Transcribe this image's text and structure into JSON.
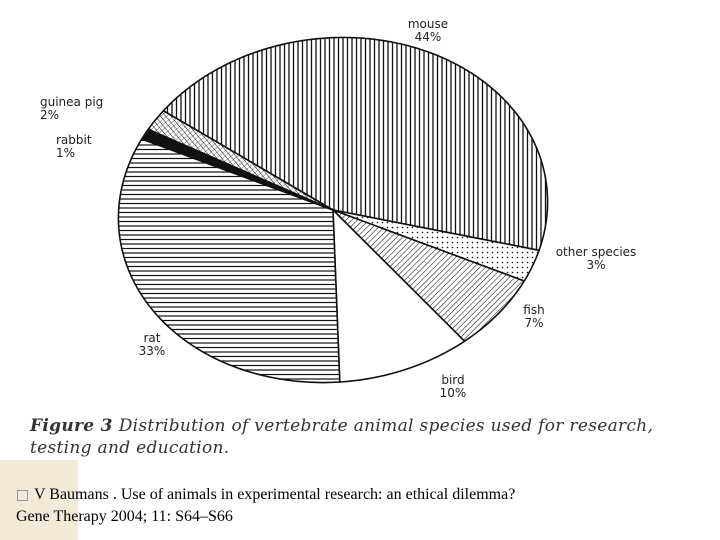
{
  "chart_data": {
    "type": "pie",
    "slices": [
      {
        "label": "mouse",
        "pct_label": "44%",
        "value": 44,
        "pattern": "pat-vert"
      },
      {
        "label": "other species",
        "pct_label": "3%",
        "value": 3,
        "pattern": "pat-dots"
      },
      {
        "label": "fish",
        "pct_label": "7%",
        "value": 7,
        "pattern": "pat-diag"
      },
      {
        "label": "bird",
        "pct_label": "10%",
        "value": 10,
        "pattern": "pat-white"
      },
      {
        "label": "rat",
        "pct_label": "33%",
        "value": 33,
        "pattern": "pat-horiz"
      },
      {
        "label": "rabbit",
        "pct_label": "1%",
        "value": 1,
        "pattern": "pat-black"
      },
      {
        "label": "guinea pig",
        "pct_label": "2%",
        "value": 2,
        "pattern": "pat-cross"
      }
    ],
    "colors": {
      "ink": "#111111",
      "background": "#ffffff"
    }
  },
  "figure_caption": {
    "number": "Figure 3",
    "text": "Distribution of vertebrate animal species used for research, testing and education."
  },
  "citation": {
    "line1": "V Baumans . Use of animals in experimental research: an ethical dilemma?",
    "line2": "Gene Therapy 2004; 11: S64–S66"
  }
}
